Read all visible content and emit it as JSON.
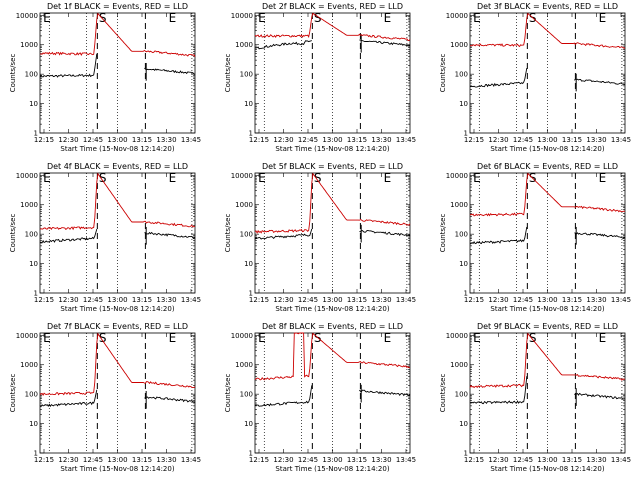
{
  "colors": {
    "events": "#000000",
    "lld": "#cc0000"
  },
  "chart_data": [
    {
      "type": "line",
      "title": "Det 1f BLACK = Events, RED = LLD",
      "xlabel": "Start Time (15-Nov-08 12:14:20)",
      "ylabel": "Counts/sec",
      "yscale": "log",
      "ylim": [
        1,
        12000
      ],
      "xlim": [
        0,
        100
      ],
      "x_tick_labels": [
        "12:15",
        "12:30",
        "12:45",
        "13:00",
        "13:15",
        "13:30",
        "13:45"
      ],
      "y_tick_labels": [
        "1",
        "10",
        "100",
        "1000",
        "10000"
      ],
      "markers": [
        "E",
        "S",
        "E"
      ],
      "series": [
        {
          "color": "#000000",
          "base_start": 85,
          "base_end": 92,
          "pre_jump": 120,
          "spike": 650,
          "post_level": 150,
          "gap_level": null
        },
        {
          "color": "#cc0000",
          "base_start": 520,
          "base_end": 480,
          "pre_jump": 650,
          "spike": 12000,
          "post_level": 600,
          "gap_level": null
        }
      ]
    },
    {
      "type": "line",
      "title": "Det 2f BLACK = Events, RED = LLD",
      "xlabel": "Start Time (15-Nov-08 12:14:20)",
      "ylabel": "Counts/sec",
      "yscale": "log",
      "ylim": [
        1,
        12000
      ],
      "xlim": [
        0,
        100
      ],
      "x_tick_labels": [
        "12:15",
        "12:30",
        "12:45",
        "13:00",
        "13:15",
        "13:30",
        "13:45"
      ],
      "y_tick_labels": [
        "1",
        "10",
        "100",
        "1000",
        "10000"
      ],
      "markers": [
        "E",
        "S",
        "E"
      ],
      "series": [
        {
          "color": "#000000",
          "base_start": 750,
          "base_end": 1300,
          "pre_jump": 1300,
          "spike": 1400,
          "post_level": 1350,
          "gap_level": 1100
        },
        {
          "color": "#cc0000",
          "base_start": 2000,
          "base_end": 2000,
          "pre_jump": 2100,
          "spike": 12000,
          "post_level": 2100,
          "gap_level": null
        }
      ]
    },
    {
      "type": "line",
      "title": "Det 3f BLACK = Events, RED = LLD",
      "xlabel": "Start Time (15-Nov-08 12:14:20)",
      "ylabel": "Counts/sec",
      "yscale": "log",
      "ylim": [
        1,
        12000
      ],
      "xlim": [
        0,
        100
      ],
      "x_tick_labels": [
        "12:15",
        "12:30",
        "12:45",
        "13:00",
        "13:15",
        "13:30",
        "13:45"
      ],
      "y_tick_labels": [
        "1",
        "10",
        "100",
        "1000",
        "10000"
      ],
      "markers": [
        "E",
        "S",
        "E"
      ],
      "series": [
        {
          "color": "#000000",
          "base_start": 38,
          "base_end": 50,
          "pre_jump": 55,
          "spike": 200,
          "post_level": 65,
          "gap_level": null
        },
        {
          "color": "#cc0000",
          "base_start": 1000,
          "base_end": 950,
          "pre_jump": 1050,
          "spike": 12000,
          "post_level": 1100,
          "gap_level": null
        }
      ]
    },
    {
      "type": "line",
      "title": "Det 4f BLACK = Events, RED = LLD",
      "xlabel": "Start Time (15-Nov-08 12:14:20)",
      "ylabel": "Counts/sec",
      "yscale": "log",
      "ylim": [
        1,
        12000
      ],
      "xlim": [
        0,
        100
      ],
      "x_tick_labels": [
        "12:15",
        "12:30",
        "12:45",
        "13:00",
        "13:15",
        "13:30",
        "13:45"
      ],
      "y_tick_labels": [
        "1",
        "10",
        "100",
        "1000",
        "10000"
      ],
      "markers": [
        "E",
        "S",
        "E"
      ],
      "series": [
        {
          "color": "#000000",
          "base_start": 55,
          "base_end": 72,
          "pre_jump": 75,
          "spike": 170,
          "post_level": 110,
          "gap_level": null
        },
        {
          "color": "#cc0000",
          "base_start": 150,
          "base_end": 170,
          "pre_jump": 180,
          "spike": 12000,
          "post_level": 260,
          "gap_level": null
        }
      ]
    },
    {
      "type": "line",
      "title": "Det 5f BLACK = Events, RED = LLD",
      "xlabel": "Start Time (15-Nov-08 12:14:20)",
      "ylabel": "Counts/sec",
      "yscale": "log",
      "ylim": [
        1,
        12000
      ],
      "xlim": [
        0,
        100
      ],
      "x_tick_labels": [
        "12:15",
        "12:30",
        "12:45",
        "13:00",
        "13:15",
        "13:30",
        "13:45"
      ],
      "y_tick_labels": [
        "1",
        "10",
        "100",
        "1000",
        "10000"
      ],
      "markers": [
        "E",
        "S",
        "E"
      ],
      "series": [
        {
          "color": "#000000",
          "base_start": 70,
          "base_end": 95,
          "pre_jump": 80,
          "spike": 170,
          "post_level": 130,
          "gap_level": null
        },
        {
          "color": "#cc0000",
          "base_start": 120,
          "base_end": 135,
          "pre_jump": 130,
          "spike": 12000,
          "post_level": 300,
          "gap_level": null
        }
      ]
    },
    {
      "type": "line",
      "title": "Det 6f BLACK = Events, RED = LLD",
      "xlabel": "Start Time (15-Nov-08 12:14:20)",
      "ylabel": "Counts/sec",
      "yscale": "log",
      "ylim": [
        1,
        12000
      ],
      "xlim": [
        0,
        100
      ],
      "x_tick_labels": [
        "12:15",
        "12:30",
        "12:45",
        "13:00",
        "13:15",
        "13:30",
        "13:45"
      ],
      "y_tick_labels": [
        "1",
        "10",
        "100",
        "1000",
        "10000"
      ],
      "markers": [
        "E",
        "S",
        "E"
      ],
      "series": [
        {
          "color": "#000000",
          "base_start": 50,
          "base_end": 60,
          "pre_jump": 60,
          "spike": 220,
          "post_level": 110,
          "gap_level": null
        },
        {
          "color": "#cc0000",
          "base_start": 450,
          "base_end": 480,
          "pre_jump": 500,
          "spike": 12000,
          "post_level": 850,
          "gap_level": null
        }
      ]
    },
    {
      "type": "line",
      "title": "Det 7f BLACK = Events, RED = LLD",
      "xlabel": "Start Time (15-Nov-08 12:14:20)",
      "ylabel": "Counts/sec",
      "yscale": "log",
      "ylim": [
        1,
        12000
      ],
      "xlim": [
        0,
        100
      ],
      "x_tick_labels": [
        "12:15",
        "12:30",
        "12:45",
        "13:00",
        "13:15",
        "13:30",
        "13:45"
      ],
      "y_tick_labels": [
        "1",
        "10",
        "100",
        "1000",
        "10000"
      ],
      "markers": [
        "E",
        "S",
        "E"
      ],
      "series": [
        {
          "color": "#000000",
          "base_start": 40,
          "base_end": 50,
          "pre_jump": 55,
          "spike": 170,
          "post_level": 80,
          "gap_level": null
        },
        {
          "color": "#cc0000",
          "base_start": 100,
          "base_end": 110,
          "pre_jump": 120,
          "spike": 12000,
          "post_level": 250,
          "gap_level": null
        }
      ]
    },
    {
      "type": "line",
      "title": "Det 8f BLACK = Events, RED = LLD",
      "xlabel": "Start Time (15-Nov-08 12:14:20)",
      "ylabel": "Counts/sec",
      "yscale": "log",
      "ylim": [
        1,
        12000
      ],
      "xlim": [
        0,
        100
      ],
      "x_tick_labels": [
        "12:15",
        "12:30",
        "12:45",
        "13:00",
        "13:15",
        "13:30",
        "13:45"
      ],
      "y_tick_labels": [
        "1",
        "10",
        "100",
        "1000",
        "10000"
      ],
      "markers": [
        "E",
        "S",
        "E"
      ],
      "series": [
        {
          "color": "#000000",
          "base_start": 40,
          "base_end": 55,
          "pre_jump": 55,
          "spike": 260,
          "post_level": 130,
          "gap_level": null
        },
        {
          "color": "#cc0000",
          "base_start": 320,
          "base_end": 420,
          "pre_jump": 420,
          "spike": 12000,
          "post_level": 1200,
          "gap_level": 12000
        }
      ]
    },
    {
      "type": "line",
      "title": "Det 9f BLACK = Events, RED = LLD",
      "xlabel": "Start Time (15-Nov-08 12:14:20)",
      "ylabel": "Counts/sec",
      "yscale": "log",
      "ylim": [
        1,
        12000
      ],
      "xlim": [
        0,
        100
      ],
      "x_tick_labels": [
        "12:15",
        "12:30",
        "12:45",
        "13:00",
        "13:15",
        "13:30",
        "13:45"
      ],
      "y_tick_labels": [
        "1",
        "10",
        "100",
        "1000",
        "10000"
      ],
      "markers": [
        "E",
        "S",
        "E"
      ],
      "series": [
        {
          "color": "#000000",
          "base_start": 50,
          "base_end": 55,
          "pre_jump": 60,
          "spike": 600,
          "post_level": 100,
          "gap_level": null
        },
        {
          "color": "#cc0000",
          "base_start": 180,
          "base_end": 200,
          "pre_jump": 220,
          "spike": 12000,
          "post_level": 450,
          "gap_level": null
        }
      ]
    }
  ]
}
